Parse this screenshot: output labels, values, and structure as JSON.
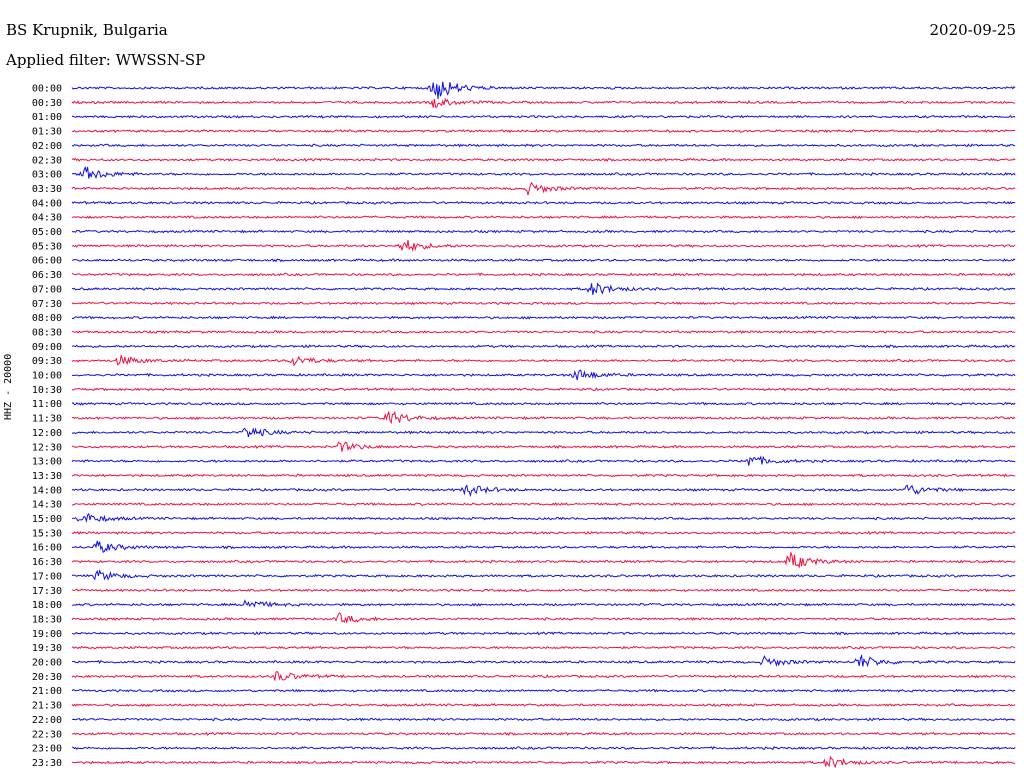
{
  "header": {
    "station": "BS Krupnik, Bulgaria",
    "date": "2020-09-25",
    "filter": "Applied filter: WWSSN-SP",
    "channel": "HHZ - 20000"
  },
  "colors": {
    "blue_trace": "#1010e0",
    "red_trace": "#ee1144"
  },
  "chart_data": {
    "type": "line",
    "title": "BS Krupnik, Bulgaria",
    "subtitle": "Applied filter: WWSSN-SP",
    "ylabel": "HHZ - 20000",
    "y_tick_labels": [
      "00:00",
      "00:30",
      "01:00",
      "01:30",
      "02:00",
      "02:30",
      "03:00",
      "03:30",
      "04:00",
      "04:30",
      "05:00",
      "05:30",
      "06:00",
      "06:30",
      "07:00",
      "07:30",
      "08:00",
      "08:30",
      "09:00",
      "09:30",
      "10:00",
      "10:30",
      "11:00",
      "11:30",
      "12:00",
      "12:30",
      "13:00",
      "13:30",
      "14:00",
      "14:30",
      "15:00",
      "15:30",
      "16:00",
      "16:30",
      "17:00",
      "17:30",
      "18:00",
      "18:30",
      "19:00",
      "19:30",
      "20:00",
      "20:30",
      "21:00",
      "21:30",
      "22:00",
      "22:30",
      "23:00",
      "23:30"
    ],
    "series_colors": [
      "blue",
      "red"
    ],
    "grid": false,
    "events": [
      {
        "row": 0,
        "minute": 11.5,
        "amp": 14
      },
      {
        "row": 1,
        "minute": 11.5,
        "amp": 5
      },
      {
        "row": 6,
        "minute": 0.4,
        "amp": 7
      },
      {
        "row": 7,
        "minute": 14.5,
        "amp": 6
      },
      {
        "row": 11,
        "minute": 10.5,
        "amp": 7
      },
      {
        "row": 14,
        "minute": 16.5,
        "amp": 7
      },
      {
        "row": 19,
        "minute": 1.5,
        "amp": 5
      },
      {
        "row": 19,
        "minute": 7.0,
        "amp": 5
      },
      {
        "row": 20,
        "minute": 16.0,
        "amp": 6
      },
      {
        "row": 23,
        "minute": 10.0,
        "amp": 8
      },
      {
        "row": 24,
        "minute": 5.5,
        "amp": 6
      },
      {
        "row": 25,
        "minute": 8.5,
        "amp": 5
      },
      {
        "row": 26,
        "minute": 21.5,
        "amp": 6
      },
      {
        "row": 28,
        "minute": 12.5,
        "amp": 6
      },
      {
        "row": 28,
        "minute": 26.5,
        "amp": 6
      },
      {
        "row": 30,
        "minute": 0.3,
        "amp": 6
      },
      {
        "row": 32,
        "minute": 0.8,
        "amp": 6
      },
      {
        "row": 33,
        "minute": 22.8,
        "amp": 9
      },
      {
        "row": 34,
        "minute": 0.8,
        "amp": 5
      },
      {
        "row": 36,
        "minute": 5.5,
        "amp": 5
      },
      {
        "row": 37,
        "minute": 8.5,
        "amp": 5
      },
      {
        "row": 40,
        "minute": 22.0,
        "amp": 5
      },
      {
        "row": 40,
        "minute": 25.0,
        "amp": 7
      },
      {
        "row": 41,
        "minute": 6.5,
        "amp": 5
      },
      {
        "row": 47,
        "minute": 24.0,
        "amp": 6
      }
    ]
  }
}
